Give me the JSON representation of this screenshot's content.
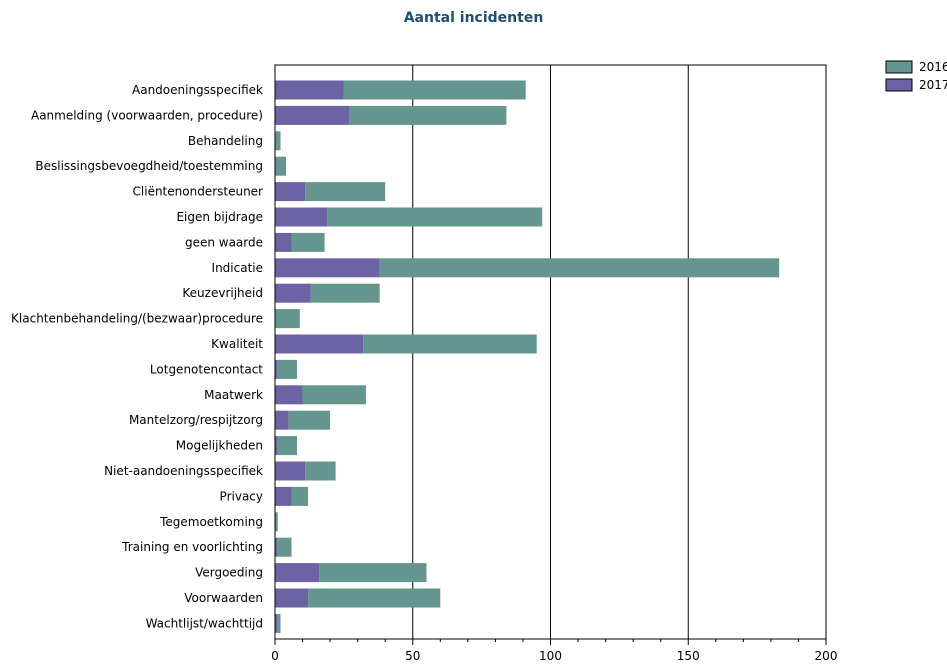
{
  "chart_data": {
    "type": "bar",
    "orientation": "horizontal",
    "stacked": true,
    "title": "Aantal incidenten",
    "categories": [
      "Aandoeningsspecifiek",
      "Aanmelding (voorwaarden, procedure)",
      "Behandeling",
      "Beslissingsbevoegdheid/toestemming",
      "Cliëntenondersteuner",
      "Eigen bijdrage",
      "geen waarde",
      "Indicatie",
      "Keuzevrijheid",
      "Klachtenbehandeling/(bezwaar)procedure",
      "Kwaliteit",
      "Lotgenotencontact",
      "Maatwerk",
      "Mantelzorg/respijtzorg",
      "Mogelijkheden",
      "Niet-aandoeningsspecifiek",
      "Privacy",
      "Tegemoetkoming",
      "Training en voorlichting",
      "Vergoeding",
      "Voorwaarden",
      "Wachtlijst/wachttijd"
    ],
    "series": [
      {
        "name": "2017",
        "color": "#6b63a3",
        "values": [
          25,
          27,
          0,
          0,
          11,
          19,
          6,
          38,
          13,
          0,
          32,
          1,
          10,
          5,
          1,
          11,
          6,
          0,
          1,
          16,
          12,
          1
        ]
      },
      {
        "name": "2016",
        "color": "#64958f",
        "values": [
          66,
          57,
          2,
          4,
          29,
          78,
          12,
          145,
          25,
          9,
          63,
          7,
          23,
          15,
          7,
          11,
          6,
          1,
          5,
          39,
          48,
          1
        ]
      }
    ],
    "legend_order": [
      "2016",
      "2017"
    ],
    "xlim": [
      0,
      200
    ],
    "xticks": [
      "0",
      "50",
      "100",
      "150",
      "200"
    ],
    "grid": "vertical-major",
    "legend_position": "top-right"
  }
}
